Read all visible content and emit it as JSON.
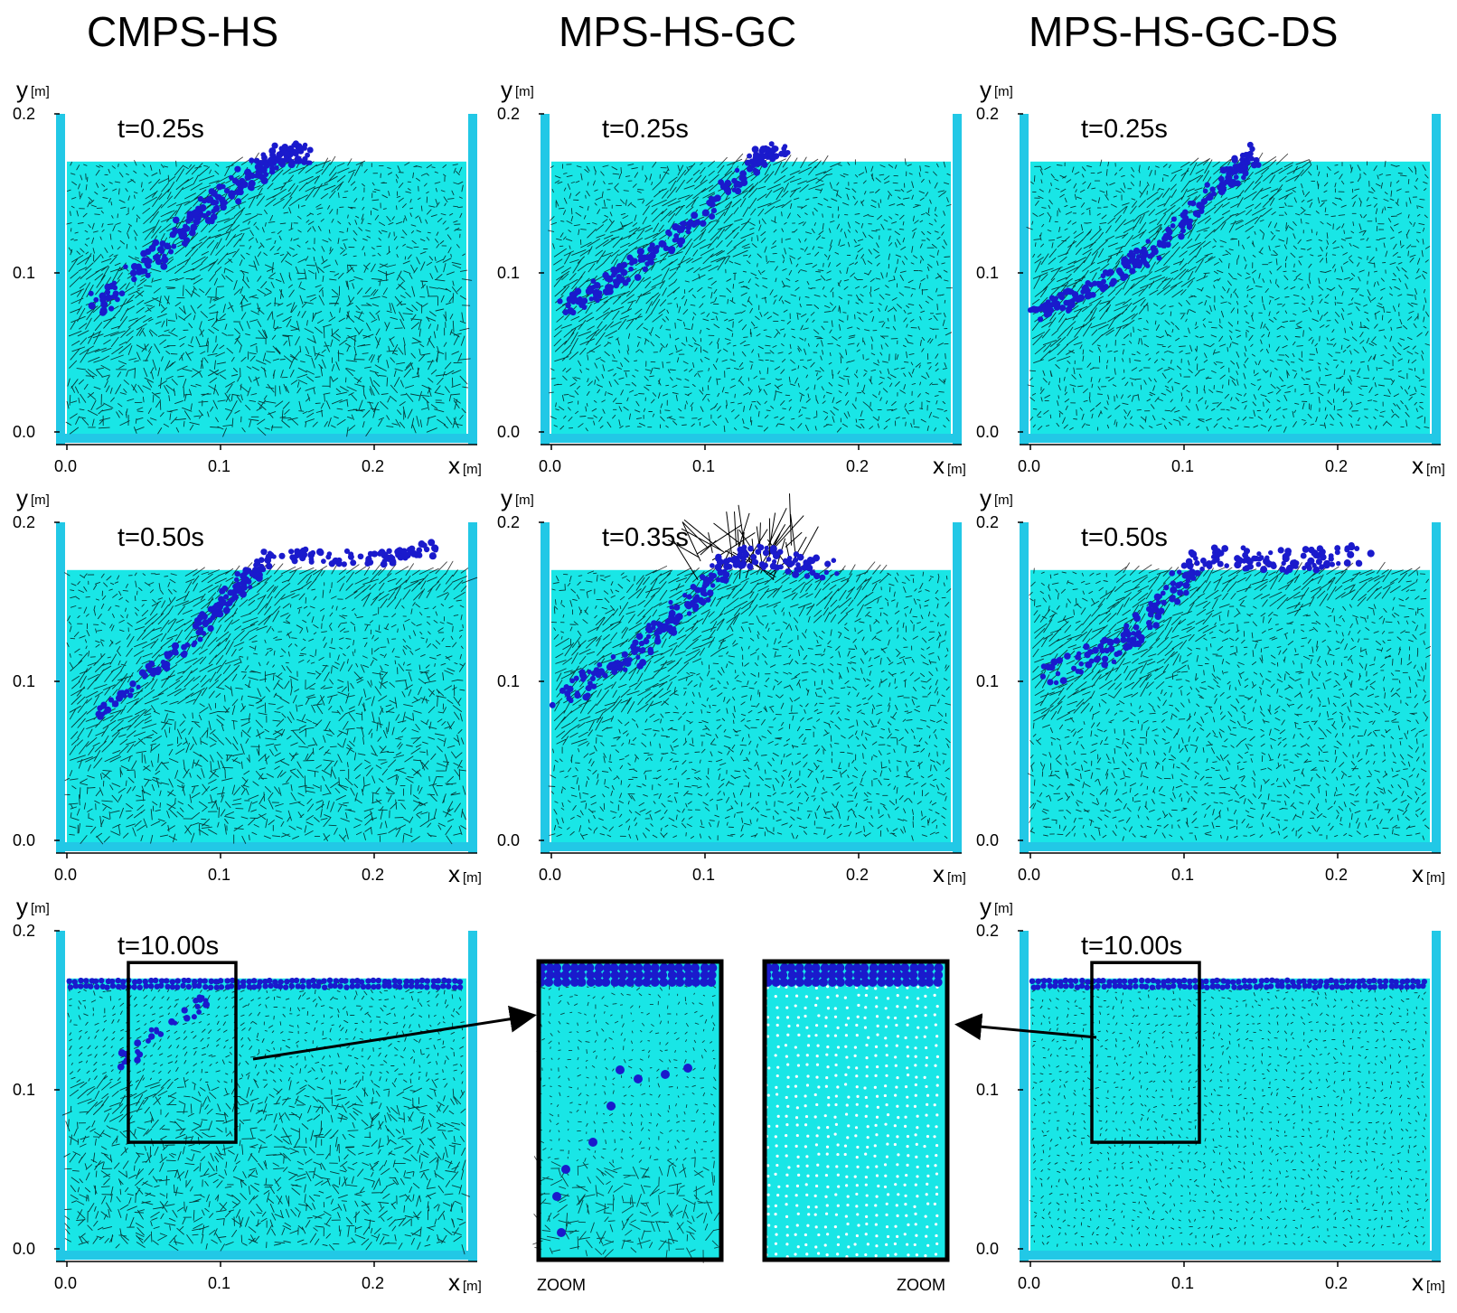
{
  "columns": [
    {
      "title": "CMPS-HS",
      "method": "CMPS-HS"
    },
    {
      "title": "MPS-HS-GC",
      "method": "MPS-HS-GC"
    },
    {
      "title": "MPS-HS-GC-DS",
      "method": "MPS-HS-GC-DS"
    }
  ],
  "axes": {
    "x_symbol": "x",
    "x_unit": "[m]",
    "y_symbol": "y",
    "y_unit": "[m]",
    "x_ticks": [
      "0.0",
      "0.1",
      "0.2"
    ],
    "y_ticks": [
      "0.0",
      "0.1",
      "0.2"
    ],
    "x_range": [
      0,
      0.26
    ],
    "y_range": [
      0,
      0.2
    ],
    "free_surface_y": 0.17
  },
  "panels": [
    {
      "id": "p11",
      "time": "t=0.25s",
      "column": "CMPS-HS"
    },
    {
      "id": "p12",
      "time": "t=0.25s",
      "column": "MPS-HS-GC"
    },
    {
      "id": "p13",
      "time": "t=0.25s",
      "column": "MPS-HS-GC-DS"
    },
    {
      "id": "p21",
      "time": "t=0.50s",
      "column": "CMPS-HS"
    },
    {
      "id": "p22",
      "time": "t=0.35s",
      "column": "MPS-HS-GC"
    },
    {
      "id": "p23",
      "time": "t=0.50s",
      "column": "MPS-HS-GC-DS"
    },
    {
      "id": "p31",
      "time": "t=10.00s",
      "column": "CMPS-HS"
    },
    {
      "id": "p33",
      "time": "t=10.00s",
      "column": "MPS-HS-GC-DS"
    }
  ],
  "zoom": {
    "label": "ZOOM",
    "box_x": [
      0.04,
      0.11
    ],
    "box_y": [
      0.067,
      0.18
    ]
  },
  "colors": {
    "fluid": "#19e6e6",
    "wall": "#22c8e6",
    "light_phase": "#1a1acc",
    "vector": "#000000",
    "frame": "#000000"
  }
}
